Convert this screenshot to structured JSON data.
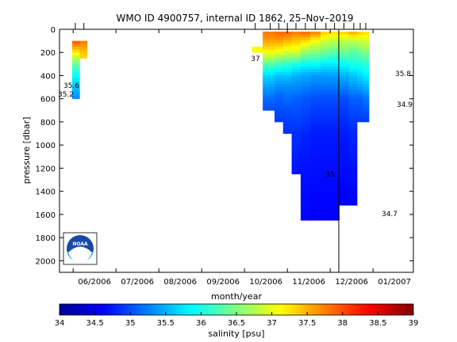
{
  "chart_data": {
    "type": "heatmap",
    "title": "WMO ID 4900757, internal ID 1862, 25–Nov–2019",
    "xlabel": "month/year",
    "ylabel": "pressure [dbar]",
    "x_tick_labels": [
      "06/2006",
      "07/2006",
      "08/2006",
      "09/2006",
      "10/2006",
      "11/2006",
      "12/2006",
      "01/2007"
    ],
    "y_ticks": [
      0,
      200,
      400,
      600,
      800,
      1000,
      1200,
      1400,
      1600,
      1800,
      2000
    ],
    "ylim": [
      0,
      2100
    ],
    "y_reversed": true,
    "colorbar": {
      "label": "salinity [psu]",
      "range": [
        34,
        39
      ],
      "ticks": [
        "34",
        "34.5",
        "35",
        "35.5",
        "36",
        "36.5",
        "37",
        "37.5",
        "38",
        "38.5",
        "39"
      ]
    },
    "contour_labels": [
      "35.6",
      "35.2",
      "35",
      "34.7",
      "35.8",
      "34.9",
      "37"
    ],
    "sections": [
      {
        "name": "early segment",
        "profiles": [
          {
            "month": 0.35,
            "max_pressure": 600,
            "salinity": [
              [
                100,
                38.0
              ],
              [
                200,
                37.2
              ],
              [
                300,
                36.4
              ],
              [
                400,
                35.9
              ],
              [
                500,
                35.6
              ],
              [
                600,
                35.3
              ]
            ]
          },
          {
            "month": 0.55,
            "max_pressure": 250,
            "salinity": [
              [
                100,
                37.8
              ],
              [
                200,
                37.4
              ],
              [
                250,
                37.3
              ]
            ]
          }
        ]
      },
      {
        "name": "main segment",
        "profiles": [
          {
            "month": 4.55,
            "max_pressure": 200,
            "salinity": [
              [
                150,
                37.2
              ],
              [
                200,
                37.0
              ]
            ]
          },
          {
            "month": 4.9,
            "max_pressure": 700,
            "salinity": [
              [
                20,
                37.8
              ],
              [
                100,
                37.6
              ],
              [
                200,
                37.1
              ],
              [
                300,
                36.3
              ],
              [
                400,
                35.7
              ],
              [
                500,
                35.4
              ],
              [
                600,
                35.15
              ],
              [
                700,
                35.0
              ]
            ]
          },
          {
            "month": 5.1,
            "max_pressure": 800,
            "salinity": [
              [
                20,
                37.9
              ],
              [
                100,
                37.6
              ],
              [
                200,
                37.0
              ],
              [
                300,
                36.2
              ],
              [
                400,
                35.6
              ],
              [
                500,
                35.3
              ],
              [
                600,
                35.1
              ],
              [
                800,
                34.9
              ]
            ]
          },
          {
            "month": 5.3,
            "max_pressure": 900,
            "salinity": [
              [
                20,
                37.9
              ],
              [
                100,
                37.5
              ],
              [
                200,
                36.9
              ],
              [
                300,
                36.1
              ],
              [
                400,
                35.6
              ],
              [
                500,
                35.3
              ],
              [
                700,
                35.0
              ],
              [
                900,
                34.85
              ]
            ]
          },
          {
            "month": 5.5,
            "max_pressure": 1250,
            "salinity": [
              [
                20,
                37.8
              ],
              [
                100,
                37.4
              ],
              [
                200,
                36.9
              ],
              [
                300,
                36.0
              ],
              [
                400,
                35.5
              ],
              [
                600,
                35.1
              ],
              [
                900,
                34.85
              ],
              [
                1250,
                34.7
              ]
            ]
          },
          {
            "month": 5.72,
            "max_pressure": 1650,
            "salinity": [
              [
                20,
                37.9
              ],
              [
                100,
                37.3
              ],
              [
                200,
                36.6
              ],
              [
                300,
                35.9
              ],
              [
                400,
                35.45
              ],
              [
                600,
                35.05
              ],
              [
                900,
                34.8
              ],
              [
                1200,
                34.7
              ],
              [
                1650,
                34.65
              ]
            ]
          },
          {
            "month": 5.95,
            "max_pressure": 1650,
            "salinity": [
              [
                20,
                37.8
              ],
              [
                100,
                37.1
              ],
              [
                200,
                36.5
              ],
              [
                300,
                35.9
              ],
              [
                400,
                35.4
              ],
              [
                600,
                35.0
              ],
              [
                900,
                34.75
              ],
              [
                1650,
                34.6
              ]
            ]
          },
          {
            "month": 6.2,
            "max_pressure": 1650,
            "salinity": [
              [
                20,
                37.4
              ],
              [
                100,
                36.9
              ],
              [
                200,
                36.4
              ],
              [
                300,
                35.8
              ],
              [
                400,
                35.4
              ],
              [
                600,
                35.0
              ],
              [
                900,
                34.75
              ],
              [
                1650,
                34.6
              ]
            ]
          },
          {
            "month": 6.4,
            "max_pressure": 1650,
            "salinity": [
              [
                20,
                37.3
              ],
              [
                100,
                36.8
              ],
              [
                200,
                36.3
              ],
              [
                300,
                35.8
              ],
              [
                400,
                35.4
              ],
              [
                600,
                35.0
              ],
              [
                900,
                34.75
              ],
              [
                1650,
                34.6
              ]
            ]
          },
          {
            "month": 6.62,
            "max_pressure": 1520,
            "salinity": [
              [
                20,
                37.4
              ],
              [
                100,
                36.8
              ],
              [
                200,
                36.4
              ],
              [
                300,
                35.9
              ],
              [
                400,
                35.5
              ],
              [
                600,
                35.0
              ],
              [
                900,
                34.75
              ],
              [
                1520,
                34.6
              ]
            ]
          },
          {
            "month": 6.85,
            "max_pressure": 1520,
            "salinity": [
              [
                20,
                37.6
              ],
              [
                100,
                36.8
              ],
              [
                200,
                36.3
              ],
              [
                300,
                36.0
              ],
              [
                400,
                35.6
              ],
              [
                600,
                35.1
              ],
              [
                900,
                34.8
              ],
              [
                1520,
                34.6
              ]
            ]
          },
          {
            "month": 7.0,
            "max_pressure": 800,
            "salinity": [
              [
                20,
                37.4
              ],
              [
                100,
                36.9
              ],
              [
                200,
                36.4
              ],
              [
                300,
                36.0
              ],
              [
                400,
                35.7
              ],
              [
                600,
                35.1
              ],
              [
                800,
                34.9
              ]
            ]
          },
          {
            "month": 7.13,
            "max_pressure": 800,
            "salinity": [
              [
                20,
                37.3
              ],
              [
                100,
                36.9
              ],
              [
                200,
                36.5
              ],
              [
                300,
                36.1
              ],
              [
                400,
                35.8
              ],
              [
                600,
                35.2
              ],
              [
                800,
                34.9
              ]
            ]
          }
        ]
      }
    ],
    "vertical_line_month": 6.5,
    "logo": "noaa-logo"
  }
}
